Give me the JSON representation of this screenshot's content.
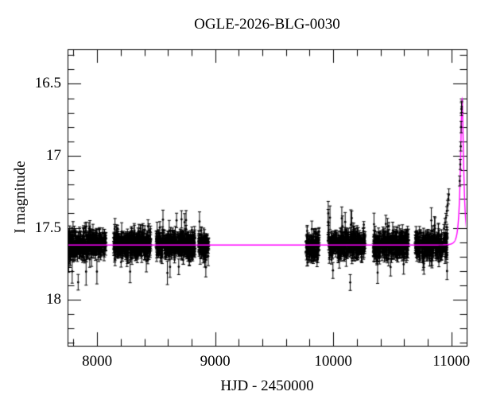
{
  "window": {
    "background": "#ffffff"
  },
  "chart_data": {
    "type": "scatter",
    "title": "OGLE-2026-BLG-0030",
    "xlabel": "HJD - 2450000",
    "ylabel": "I magnitude",
    "legend": "none",
    "grid": false,
    "point_color": "#000000",
    "model_color": "#ff00ff",
    "axes": {
      "x": {
        "min": 7750,
        "max": 11130,
        "minor_step": 200,
        "major_ticks": [
          {
            "value": 8000,
            "label": "8000"
          },
          {
            "value": 9000,
            "label": "9000"
          },
          {
            "value": 10000,
            "label": "10000"
          },
          {
            "value": 11000,
            "label": "11000"
          }
        ]
      },
      "y": {
        "min": 16.26,
        "max": 18.32,
        "inverted": true,
        "minor_step": 0.1,
        "major_ticks": [
          {
            "value": 16.5,
            "label": "16.5"
          },
          {
            "value": 17,
            "label": "17"
          },
          {
            "value": 17.5,
            "label": "17.5"
          },
          {
            "value": 18,
            "label": "18"
          }
        ]
      }
    },
    "baseline_mag": 17.62,
    "seasons": [
      {
        "t_start": 7755,
        "t_end": 8075,
        "n": 400,
        "mag_mean": 17.62,
        "mag_sigma": 0.042
      },
      {
        "t_start": 8140,
        "t_end": 8455,
        "n": 390,
        "mag_mean": 17.62,
        "mag_sigma": 0.042
      },
      {
        "t_start": 8500,
        "t_end": 8830,
        "n": 410,
        "mag_mean": 17.62,
        "mag_sigma": 0.042
      },
      {
        "t_start": 8860,
        "t_end": 8945,
        "n": 100,
        "mag_mean": 17.62,
        "mag_sigma": 0.04
      },
      {
        "t_start": 9770,
        "t_end": 9880,
        "n": 130,
        "mag_mean": 17.63,
        "mag_sigma": 0.048
      },
      {
        "t_start": 9955,
        "t_end": 10270,
        "n": 380,
        "mag_mean": 17.62,
        "mag_sigma": 0.044
      },
      {
        "t_start": 10340,
        "t_end": 10640,
        "n": 360,
        "mag_mean": 17.62,
        "mag_sigma": 0.042
      },
      {
        "t_start": 10695,
        "t_end": 10965,
        "n": 330,
        "mag_mean": 17.62,
        "mag_sigma": 0.042
      }
    ],
    "flare_points": [
      [
        10938,
        17.505,
        0.028
      ],
      [
        10947,
        17.465,
        0.03
      ],
      [
        10955,
        17.43,
        0.03
      ],
      [
        10962,
        17.385,
        0.032
      ],
      [
        10968,
        17.345,
        0.035
      ],
      [
        10974,
        17.3,
        0.035
      ],
      [
        10979,
        17.27,
        0.04
      ],
      [
        11071,
        17.175,
        0.035
      ],
      [
        11076,
        17.06,
        0.035
      ],
      [
        11080,
        16.935,
        0.032
      ],
      [
        11083,
        16.8,
        0.04
      ],
      [
        11086,
        16.675,
        0.045
      ],
      [
        11088,
        16.66,
        0.04
      ]
    ],
    "model": {
      "type": "paczynski",
      "t0": 11091,
      "tE": 24,
      "u0": 0.42,
      "baseline_mag": 17.62
    }
  }
}
